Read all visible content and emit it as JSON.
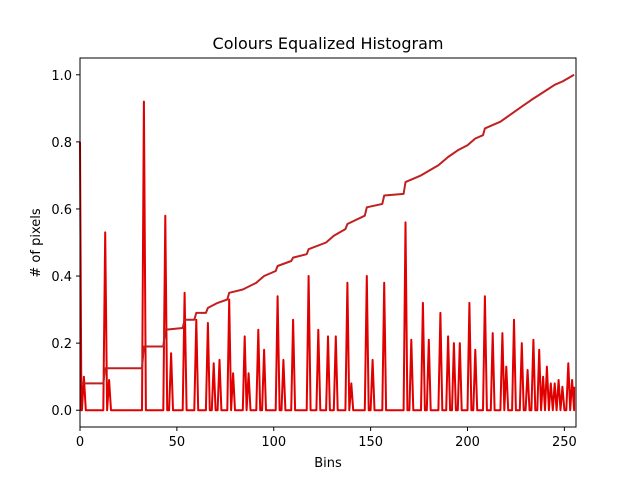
{
  "chart_data": {
    "type": "line",
    "title": "Colours Equalized Histogram",
    "xlabel": "Bins",
    "ylabel": "# of pixels",
    "xlim": [
      0,
      256
    ],
    "ylim": [
      -0.05,
      1.05
    ],
    "grid": false,
    "legend": "none",
    "x_ticks": [
      0,
      50,
      100,
      150,
      200,
      250
    ],
    "y_ticks": [
      0.0,
      0.2,
      0.4,
      0.6,
      0.8,
      1.0
    ],
    "x_tick_labels": [
      "0",
      "50",
      "100",
      "150",
      "200",
      "250"
    ],
    "y_tick_labels": [
      "0.0",
      "0.2",
      "0.4",
      "0.6",
      "0.8",
      "1.0"
    ],
    "series": [
      {
        "kind": "histogram",
        "color": "#e00000",
        "baseline": 0.0,
        "peaks": [
          [
            0,
            0.8
          ],
          [
            2,
            0.1
          ],
          [
            13,
            0.53
          ],
          [
            15,
            0.09
          ],
          [
            33,
            0.92
          ],
          [
            44,
            0.58
          ],
          [
            47,
            0.17
          ],
          [
            54,
            0.35
          ],
          [
            60,
            0.27
          ],
          [
            66,
            0.26
          ],
          [
            69,
            0.14
          ],
          [
            72,
            0.15
          ],
          [
            77,
            0.33
          ],
          [
            79,
            0.11
          ],
          [
            85,
            0.22
          ],
          [
            87,
            0.11
          ],
          [
            92,
            0.24
          ],
          [
            95,
            0.18
          ],
          [
            102,
            0.34
          ],
          [
            105,
            0.15
          ],
          [
            110,
            0.27
          ],
          [
            118,
            0.4
          ],
          [
            123,
            0.24
          ],
          [
            128,
            0.22
          ],
          [
            132,
            0.22
          ],
          [
            138,
            0.38
          ],
          [
            140,
            0.08
          ],
          [
            148,
            0.4
          ],
          [
            151,
            0.15
          ],
          [
            157,
            0.38
          ],
          [
            168,
            0.56
          ],
          [
            171,
            0.21
          ],
          [
            177,
            0.32
          ],
          [
            180,
            0.21
          ],
          [
            186,
            0.29
          ],
          [
            190,
            0.22
          ],
          [
            193,
            0.2
          ],
          [
            196,
            0.2
          ],
          [
            201,
            0.32
          ],
          [
            204,
            0.18
          ],
          [
            209,
            0.34
          ],
          [
            213,
            0.23
          ],
          [
            218,
            0.23
          ],
          [
            220,
            0.13
          ],
          [
            224,
            0.27
          ],
          [
            228,
            0.2
          ],
          [
            231,
            0.12
          ],
          [
            234,
            0.21
          ],
          [
            237,
            0.18
          ],
          [
            239,
            0.1
          ],
          [
            241,
            0.13
          ],
          [
            243,
            0.08
          ],
          [
            245,
            0.08
          ],
          [
            247,
            0.09
          ],
          [
            249,
            0.07
          ],
          [
            252,
            0.14
          ],
          [
            254,
            0.09
          ]
        ]
      },
      {
        "kind": "cdf",
        "color": "#c02020",
        "points": [
          [
            0,
            0.08
          ],
          [
            12,
            0.08
          ],
          [
            13,
            0.125
          ],
          [
            32,
            0.125
          ],
          [
            33,
            0.19
          ],
          [
            43,
            0.19
          ],
          [
            44,
            0.24
          ],
          [
            53,
            0.245
          ],
          [
            54,
            0.27
          ],
          [
            59,
            0.27
          ],
          [
            60,
            0.29
          ],
          [
            65,
            0.29
          ],
          [
            66,
            0.305
          ],
          [
            71,
            0.32
          ],
          [
            76,
            0.33
          ],
          [
            77,
            0.35
          ],
          [
            84,
            0.36
          ],
          [
            91,
            0.38
          ],
          [
            95,
            0.4
          ],
          [
            101,
            0.415
          ],
          [
            102,
            0.43
          ],
          [
            109,
            0.445
          ],
          [
            110,
            0.455
          ],
          [
            117,
            0.465
          ],
          [
            118,
            0.48
          ],
          [
            127,
            0.5
          ],
          [
            131,
            0.52
          ],
          [
            137,
            0.54
          ],
          [
            138,
            0.555
          ],
          [
            147,
            0.58
          ],
          [
            148,
            0.605
          ],
          [
            156,
            0.615
          ],
          [
            157,
            0.64
          ],
          [
            167,
            0.645
          ],
          [
            168,
            0.68
          ],
          [
            176,
            0.7
          ],
          [
            185,
            0.73
          ],
          [
            190,
            0.755
          ],
          [
            195,
            0.775
          ],
          [
            200,
            0.79
          ],
          [
            204,
            0.81
          ],
          [
            208,
            0.82
          ],
          [
            209,
            0.84
          ],
          [
            217,
            0.86
          ],
          [
            223,
            0.885
          ],
          [
            228,
            0.905
          ],
          [
            233,
            0.925
          ],
          [
            237,
            0.94
          ],
          [
            241,
            0.955
          ],
          [
            245,
            0.97
          ],
          [
            249,
            0.98
          ],
          [
            252,
            0.99
          ],
          [
            255,
            1.0
          ]
        ]
      }
    ]
  }
}
